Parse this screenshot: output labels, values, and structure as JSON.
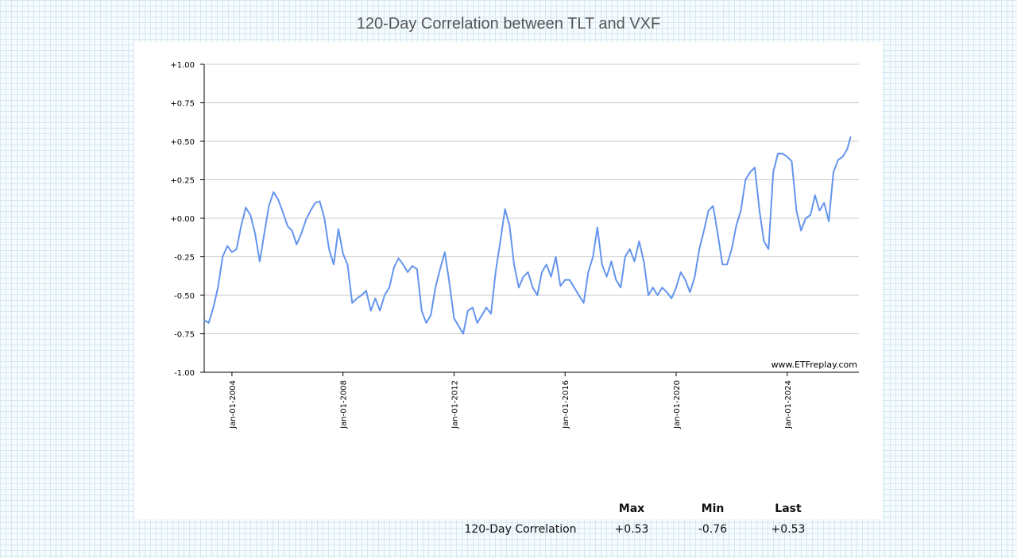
{
  "chart_data": {
    "type": "line",
    "title": "120-Day Correlation between TLT and VXF",
    "watermark": "www.ETFreplay.com",
    "ylim": [
      -1.0,
      1.0
    ],
    "y_ticks": [
      -1.0,
      -0.75,
      -0.5,
      -0.25,
      0.0,
      0.25,
      0.5,
      0.75,
      1.0
    ],
    "y_tick_labels": [
      "-1.00",
      "-0.75",
      "-0.50",
      "-0.25",
      "+0.00",
      "+0.25",
      "+0.50",
      "+0.75",
      "+1.00"
    ],
    "x_ticks": [
      "2004-01-01",
      "2008-01-01",
      "2012-01-01",
      "2016-01-01",
      "2020-01-01",
      "2024-01-01"
    ],
    "x_tick_labels": [
      "Jan-01-2004",
      "Jan-01-2008",
      "Jan-01-2012",
      "Jan-01-2016",
      "Jan-01-2020",
      "Jan-01-2024"
    ],
    "xlim": [
      "2003-01-01",
      "2026-08-01"
    ],
    "grid": true,
    "line_color": "#6495ED",
    "series": [
      {
        "points": [
          [
            "2003-01-01",
            -0.66
          ],
          [
            "2003-03-01",
            -0.68
          ],
          [
            "2003-05-01",
            -0.58
          ],
          [
            "2003-07-01",
            -0.45
          ],
          [
            "2003-09-01",
            -0.25
          ],
          [
            "2003-11-01",
            -0.18
          ],
          [
            "2004-01-01",
            -0.22
          ],
          [
            "2004-03-01",
            -0.2
          ],
          [
            "2004-05-01",
            -0.05
          ],
          [
            "2004-07-01",
            0.07
          ],
          [
            "2004-09-01",
            0.02
          ],
          [
            "2004-11-01",
            -0.1
          ],
          [
            "2005-01-01",
            -0.28
          ],
          [
            "2005-03-01",
            -0.1
          ],
          [
            "2005-05-01",
            0.08
          ],
          [
            "2005-07-01",
            0.17
          ],
          [
            "2005-09-01",
            0.12
          ],
          [
            "2005-11-01",
            0.04
          ],
          [
            "2006-01-01",
            -0.05
          ],
          [
            "2006-03-01",
            -0.08
          ],
          [
            "2006-05-01",
            -0.17
          ],
          [
            "2006-07-01",
            -0.1
          ],
          [
            "2006-09-01",
            -0.01
          ],
          [
            "2006-11-01",
            0.05
          ],
          [
            "2007-01-01",
            0.1
          ],
          [
            "2007-03-01",
            0.11
          ],
          [
            "2007-05-01",
            0.0
          ],
          [
            "2007-07-01",
            -0.2
          ],
          [
            "2007-09-01",
            -0.3
          ],
          [
            "2007-11-01",
            -0.07
          ],
          [
            "2008-01-01",
            -0.23
          ],
          [
            "2008-03-01",
            -0.3
          ],
          [
            "2008-05-01",
            -0.55
          ],
          [
            "2008-07-01",
            -0.52
          ],
          [
            "2008-09-01",
            -0.5
          ],
          [
            "2008-11-01",
            -0.47
          ],
          [
            "2009-01-01",
            -0.6
          ],
          [
            "2009-03-01",
            -0.52
          ],
          [
            "2009-05-01",
            -0.6
          ],
          [
            "2009-07-01",
            -0.5
          ],
          [
            "2009-09-01",
            -0.45
          ],
          [
            "2009-11-01",
            -0.32
          ],
          [
            "2010-01-01",
            -0.26
          ],
          [
            "2010-03-01",
            -0.3
          ],
          [
            "2010-05-01",
            -0.35
          ],
          [
            "2010-07-01",
            -0.31
          ],
          [
            "2010-09-01",
            -0.33
          ],
          [
            "2010-11-01",
            -0.6
          ],
          [
            "2011-01-01",
            -0.68
          ],
          [
            "2011-03-01",
            -0.63
          ],
          [
            "2011-05-01",
            -0.45
          ],
          [
            "2011-07-01",
            -0.33
          ],
          [
            "2011-09-01",
            -0.22
          ],
          [
            "2011-11-01",
            -0.42
          ],
          [
            "2012-01-01",
            -0.65
          ],
          [
            "2012-03-01",
            -0.7
          ],
          [
            "2012-05-01",
            -0.75
          ],
          [
            "2012-07-01",
            -0.6
          ],
          [
            "2012-09-01",
            -0.58
          ],
          [
            "2012-11-01",
            -0.68
          ],
          [
            "2013-01-01",
            -0.63
          ],
          [
            "2013-03-01",
            -0.58
          ],
          [
            "2013-05-01",
            -0.62
          ],
          [
            "2013-07-01",
            -0.35
          ],
          [
            "2013-09-01",
            -0.15
          ],
          [
            "2013-11-01",
            0.06
          ],
          [
            "2014-01-01",
            -0.05
          ],
          [
            "2014-03-01",
            -0.3
          ],
          [
            "2014-05-01",
            -0.45
          ],
          [
            "2014-07-01",
            -0.38
          ],
          [
            "2014-09-01",
            -0.35
          ],
          [
            "2014-11-01",
            -0.45
          ],
          [
            "2015-01-01",
            -0.5
          ],
          [
            "2015-03-01",
            -0.35
          ],
          [
            "2015-05-01",
            -0.3
          ],
          [
            "2015-07-01",
            -0.38
          ],
          [
            "2015-09-01",
            -0.25
          ],
          [
            "2015-11-01",
            -0.44
          ],
          [
            "2016-01-01",
            -0.4
          ],
          [
            "2016-03-01",
            -0.4
          ],
          [
            "2016-05-01",
            -0.45
          ],
          [
            "2016-07-01",
            -0.5
          ],
          [
            "2016-09-01",
            -0.55
          ],
          [
            "2016-11-01",
            -0.35
          ],
          [
            "2017-01-01",
            -0.25
          ],
          [
            "2017-03-01",
            -0.06
          ],
          [
            "2017-05-01",
            -0.3
          ],
          [
            "2017-07-01",
            -0.38
          ],
          [
            "2017-09-01",
            -0.28
          ],
          [
            "2017-11-01",
            -0.4
          ],
          [
            "2018-01-01",
            -0.45
          ],
          [
            "2018-03-01",
            -0.25
          ],
          [
            "2018-05-01",
            -0.2
          ],
          [
            "2018-07-01",
            -0.28
          ],
          [
            "2018-09-01",
            -0.15
          ],
          [
            "2018-11-01",
            -0.28
          ],
          [
            "2019-01-01",
            -0.5
          ],
          [
            "2019-03-01",
            -0.45
          ],
          [
            "2019-05-01",
            -0.5
          ],
          [
            "2019-07-01",
            -0.45
          ],
          [
            "2019-09-01",
            -0.48
          ],
          [
            "2019-11-01",
            -0.52
          ],
          [
            "2020-01-01",
            -0.45
          ],
          [
            "2020-03-01",
            -0.35
          ],
          [
            "2020-05-01",
            -0.4
          ],
          [
            "2020-07-01",
            -0.48
          ],
          [
            "2020-09-01",
            -0.38
          ],
          [
            "2020-11-01",
            -0.2
          ],
          [
            "2021-01-01",
            -0.08
          ],
          [
            "2021-03-01",
            0.05
          ],
          [
            "2021-05-01",
            0.08
          ],
          [
            "2021-07-01",
            -0.1
          ],
          [
            "2021-09-01",
            -0.3
          ],
          [
            "2021-11-01",
            -0.3
          ],
          [
            "2022-01-01",
            -0.2
          ],
          [
            "2022-03-01",
            -0.05
          ],
          [
            "2022-05-01",
            0.05
          ],
          [
            "2022-07-01",
            0.25
          ],
          [
            "2022-09-01",
            0.3
          ],
          [
            "2022-11-01",
            0.33
          ],
          [
            "2023-01-01",
            0.05
          ],
          [
            "2023-03-01",
            -0.15
          ],
          [
            "2023-05-01",
            -0.2
          ],
          [
            "2023-07-01",
            0.3
          ],
          [
            "2023-09-01",
            0.42
          ],
          [
            "2023-11-01",
            0.42
          ],
          [
            "2024-01-01",
            0.4
          ],
          [
            "2024-03-01",
            0.37
          ],
          [
            "2024-05-01",
            0.05
          ],
          [
            "2024-07-01",
            -0.08
          ],
          [
            "2024-09-01",
            0.0
          ],
          [
            "2024-11-01",
            0.02
          ],
          [
            "2025-01-01",
            0.15
          ],
          [
            "2025-03-01",
            0.05
          ],
          [
            "2025-05-01",
            0.1
          ],
          [
            "2025-07-01",
            -0.02
          ],
          [
            "2025-09-01",
            0.3
          ],
          [
            "2025-11-01",
            0.38
          ],
          [
            "2026-01-01",
            0.4
          ],
          [
            "2026-03-01",
            0.45
          ],
          [
            "2026-04-15",
            0.53
          ]
        ]
      }
    ]
  },
  "stats": {
    "headers": [
      "Max",
      "Min",
      "Last"
    ],
    "row_label": "120-Day Correlation",
    "max": "+0.53",
    "min": "-0.76",
    "last": "+0.53"
  }
}
